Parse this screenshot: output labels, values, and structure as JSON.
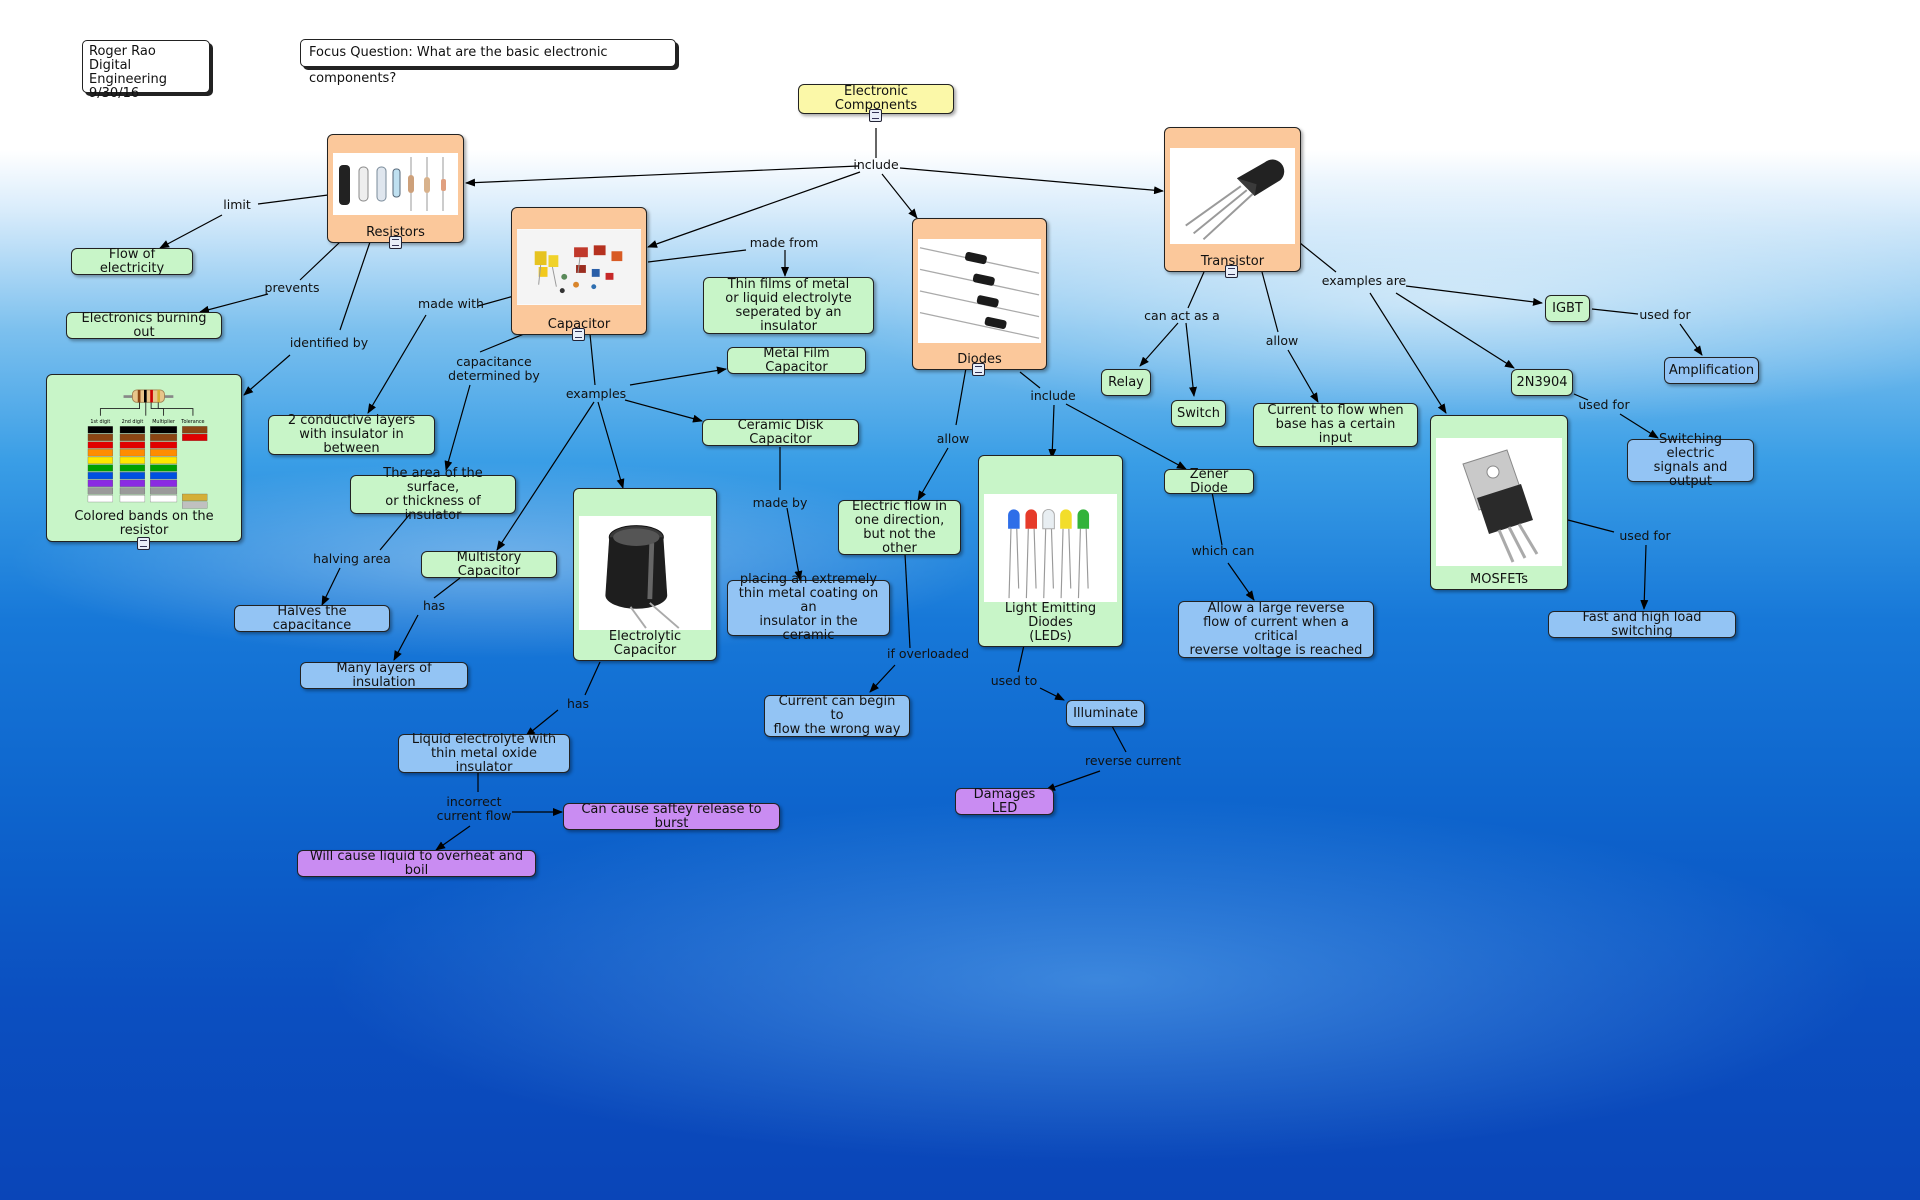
{
  "header": {
    "author_block": "Roger Rao\nDigital Engineering\n9/30/16",
    "focus_question": "Focus Question: What are the basic electronic components?"
  },
  "nodes": {
    "root": "Electronic Components",
    "resistors": "Resistors",
    "capacitor": "Capacitor",
    "diodes": "Diodes",
    "transistor": "Transistor",
    "flow_electricity": "Flow of electricity",
    "burning_out": "Electronics burning out",
    "colored_bands": "Colored bands on the resistor",
    "conductive_layers": "2 conductive layers\nwith insulator in between",
    "thin_films": "Thin films of metal\nor liquid electrolyte\nseperated by an insulator",
    "metal_film": "Metal Film Capacitor",
    "ceramic_disk": "Ceramic Disk Capacitor",
    "area_surface": "The area of the surface,\nor thickness of insulator",
    "multistory": "Multistory Capacitor",
    "halves": "Halves the capacitance",
    "many_layers": "Many layers of insulation",
    "electrolytic": "Electrolytic Capacitor",
    "placing_coating": "placing an extremely\nthin metal coating on an\ninsulator in the ceramic",
    "liquid_electrolyte": "Liquid electrolyte with\nthin metal oxide insulator",
    "saftey_release": "Can cause saftey release to burst",
    "overheat": "Will cause liquid to overheat and boil",
    "one_direction": "Electric flow in\none direction,\nbut not the other",
    "wrong_way": "Current can begin to\nflow the wrong way",
    "leds": "Light Emitting Diodes\n(LEDs)",
    "illuminate": "Illuminate",
    "damages_led": "Damages LED",
    "zener": "Zener Diode",
    "large_reverse": "Allow a large reverse\nflow of current when a critical\nreverse voltage is reached",
    "relay": "Relay",
    "switch": "Switch",
    "current_flow_base": "Current to flow when\nbase has a certain input",
    "igbt": "IGBT",
    "amplification": "Amplification",
    "n2n3904": "2N3904",
    "switching_signals": "Switching electric\nsignals and output",
    "mosfets": "MOSFETs",
    "fast_switching": "Fast and high load switching"
  },
  "links": {
    "include_root": "include",
    "limit": "limit",
    "prevents": "prevents",
    "identified_by": "identified by",
    "made_with": "made with",
    "made_from": "made from",
    "capacitance_determined": "capacitance\ndetermined by",
    "examples_cap": "examples",
    "halving_area": "halving area",
    "has_multistory": "has",
    "made_by": "made by",
    "has_electrolytic": "has",
    "incorrect_flow": "incorrect\ncurrent flow",
    "allow_diodes": "allow",
    "include_diodes": "include",
    "if_overloaded": "if overloaded",
    "used_to": "used to",
    "reverse_current": "reverse current",
    "which_can": "which can",
    "can_act_as": "can act as a",
    "allow_transistor": "allow",
    "examples_are": "examples are",
    "used_for_igbt": "used for",
    "used_for_2n": "used for",
    "used_for_mosfet": "used for"
  },
  "resistor_chart": {
    "headers": [
      "1st digit",
      "2nd digit",
      "Multiplier",
      "Tolerance"
    ]
  }
}
